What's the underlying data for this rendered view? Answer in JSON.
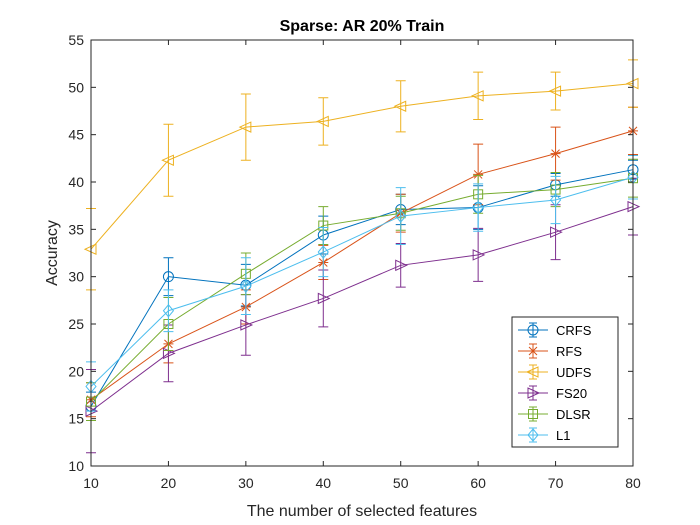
{
  "chart_data": {
    "type": "line",
    "title": "Sparse: AR 20% Train",
    "xlabel": "The number of selected features",
    "ylabel": "Accuracy",
    "x": [
      10,
      20,
      30,
      40,
      50,
      60,
      70,
      80
    ],
    "xlim": [
      10,
      80
    ],
    "ylim": [
      10,
      55
    ],
    "xticks": [
      10,
      20,
      30,
      40,
      50,
      60,
      70,
      80
    ],
    "yticks": [
      10,
      15,
      20,
      25,
      30,
      35,
      40,
      45,
      50,
      55
    ],
    "grid": false,
    "legend_position": "bottom-right",
    "error_bars": true,
    "series": [
      {
        "name": "CRFS",
        "color": "#0072BD",
        "marker": "circle",
        "values": [
          16.3,
          30.0,
          29.1,
          34.4,
          37.1,
          37.3,
          39.7,
          41.3
        ],
        "errors": [
          1.5,
          2.0,
          2.2,
          2.0,
          1.6,
          2.3,
          1.2,
          1.0
        ]
      },
      {
        "name": "RFS",
        "color": "#D95319",
        "marker": "asterisk",
        "values": [
          17.0,
          22.9,
          26.8,
          31.5,
          36.7,
          40.8,
          43.0,
          45.4
        ],
        "errors": [
          1.8,
          2.0,
          1.8,
          1.8,
          2.0,
          3.2,
          2.8,
          2.5
        ]
      },
      {
        "name": "UDFS",
        "color": "#EDB120",
        "marker": "triangle-left",
        "values": [
          32.9,
          42.3,
          45.8,
          46.4,
          48.0,
          49.1,
          49.6,
          50.4
        ],
        "errors": [
          4.3,
          3.8,
          3.5,
          2.5,
          2.7,
          2.5,
          2.0,
          2.5
        ]
      },
      {
        "name": "FS20",
        "color": "#7E2F8E",
        "marker": "triangle-right",
        "values": [
          15.8,
          21.9,
          24.9,
          27.7,
          31.2,
          32.3,
          34.7,
          37.4
        ],
        "errors": [
          4.4,
          3.0,
          3.2,
          3.0,
          2.3,
          2.8,
          2.9,
          3.0
        ]
      },
      {
        "name": "DLSR",
        "color": "#77AC30",
        "marker": "square",
        "values": [
          16.8,
          25.0,
          30.3,
          35.4,
          36.7,
          38.7,
          39.2,
          40.4
        ],
        "errors": [
          2.0,
          2.8,
          2.2,
          2.0,
          1.8,
          2.0,
          1.8,
          2.0
        ]
      },
      {
        "name": "L1",
        "color": "#4DBEEE",
        "marker": "diamond",
        "values": [
          18.4,
          26.4,
          29.0,
          32.6,
          36.4,
          37.3,
          38.1,
          40.5
        ],
        "errors": [
          2.6,
          2.2,
          3.0,
          2.6,
          3.0,
          2.5,
          2.5,
          2.3
        ]
      }
    ]
  }
}
